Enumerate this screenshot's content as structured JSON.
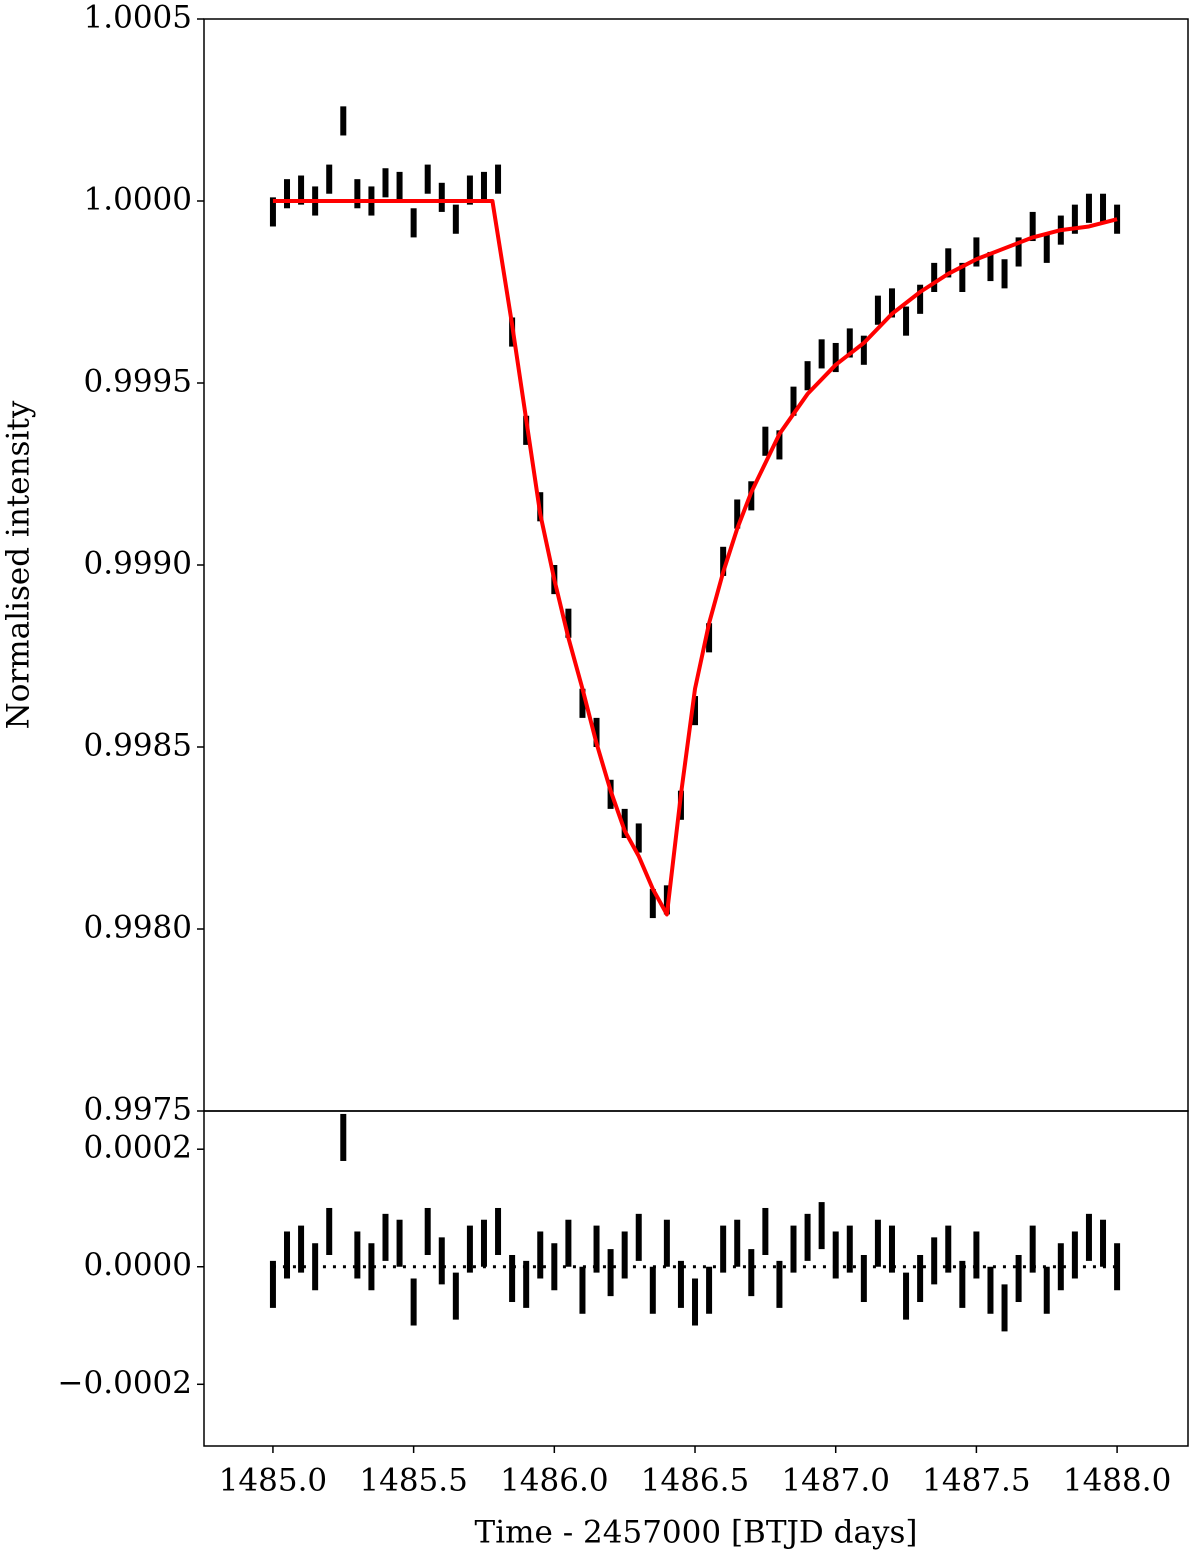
{
  "chart_data": [
    {
      "type": "errorbar",
      "ylabel": "Normalised intensity",
      "xlim": [
        1484.755,
        1488.252
      ],
      "ylim": [
        0.9975,
        1.0005
      ],
      "yticks": [
        0.9975,
        {
          "value": 0.998,
          "label": "0.9980"
        },
        0.9985,
        {
          "value": 0.999,
          "label": "0.9990"
        },
        0.9995,
        {
          "value": 1,
          "label": "1.0000"
        },
        1.0005
      ],
      "color": "#000000",
      "x": [
        1485.0,
        1485.05,
        1485.1,
        1485.15,
        1485.2,
        1485.25,
        1485.3,
        1485.35,
        1485.4,
        1485.45,
        1485.5,
        1485.55,
        1485.6,
        1485.65,
        1485.7,
        1485.75,
        1485.8,
        1485.85,
        1485.9,
        1485.95,
        1486.0,
        1486.05,
        1486.1,
        1486.15,
        1486.2,
        1486.25,
        1486.3,
        1486.35,
        1486.4,
        1486.45,
        1486.5,
        1486.55,
        1486.6,
        1486.65,
        1486.7,
        1486.75,
        1486.8,
        1486.85,
        1486.9,
        1486.95,
        1487.0,
        1487.05,
        1487.1,
        1487.15,
        1487.2,
        1487.25,
        1487.3,
        1487.35,
        1487.4,
        1487.45,
        1487.5,
        1487.55,
        1487.6,
        1487.65,
        1487.7,
        1487.75,
        1487.8,
        1487.85,
        1487.9,
        1487.95,
        1488.0
      ],
      "values": [
        0.99997,
        1.00002,
        1.00003,
        1.0,
        1.00006,
        1.00022,
        1.00002,
        1.0,
        1.00005,
        1.00004,
        0.99994,
        1.00006,
        1.00001,
        0.99995,
        1.00003,
        1.00004,
        1.00006,
        0.99964,
        0.99937,
        0.99916,
        0.99896,
        0.99884,
        0.99862,
        0.99854,
        0.99837,
        0.99829,
        0.99825,
        0.99807,
        0.99808,
        0.99834,
        0.9986,
        0.9988,
        0.99901,
        0.99914,
        0.99919,
        0.99934,
        0.99933,
        0.99945,
        0.99952,
        0.99958,
        0.99957,
        0.99961,
        0.99959,
        0.9997,
        0.99972,
        0.99967,
        0.99973,
        0.99979,
        0.99983,
        0.99979,
        0.99986,
        0.99982,
        0.9998,
        0.99986,
        0.99993,
        0.99987,
        0.99992,
        0.99995,
        0.99998,
        0.99998,
        0.99995
      ],
      "errors": [
        4e-05,
        4e-05,
        4e-05,
        4e-05,
        4e-05,
        4e-05,
        4e-05,
        4e-05,
        4e-05,
        4e-05,
        4e-05,
        4e-05,
        4e-05,
        4e-05,
        4e-05,
        4e-05,
        4e-05,
        4e-05,
        4e-05,
        4e-05,
        4e-05,
        4e-05,
        4e-05,
        4e-05,
        4e-05,
        4e-05,
        4e-05,
        4e-05,
        4e-05,
        4e-05,
        4e-05,
        4e-05,
        4e-05,
        4e-05,
        4e-05,
        4e-05,
        4e-05,
        4e-05,
        4e-05,
        4e-05,
        4e-05,
        4e-05,
        4e-05,
        4e-05,
        4e-05,
        4e-05,
        4e-05,
        4e-05,
        4e-05,
        4e-05,
        4e-05,
        4e-05,
        4e-05,
        4e-05,
        4e-05,
        4e-05,
        4e-05,
        4e-05,
        4e-05,
        4e-05,
        4e-05
      ],
      "model": {
        "color": "#ff0000",
        "x": [
          1485.0,
          1485.78,
          1485.85,
          1485.9,
          1485.95,
          1486.0,
          1486.05,
          1486.1,
          1486.15,
          1486.2,
          1486.25,
          1486.3,
          1486.35,
          1486.4,
          1486.45,
          1486.5,
          1486.55,
          1486.6,
          1486.65,
          1486.7,
          1486.75,
          1486.8,
          1486.9,
          1487.0,
          1487.1,
          1487.2,
          1487.3,
          1487.4,
          1487.5,
          1487.6,
          1487.7,
          1487.8,
          1487.9,
          1488.0
        ],
        "values": [
          1.0,
          1.0,
          0.99966,
          0.9994,
          0.99914,
          0.99896,
          0.9988,
          0.99866,
          0.99851,
          0.99838,
          0.99827,
          0.9982,
          0.99811,
          0.99804,
          0.99837,
          0.99866,
          0.99884,
          0.99898,
          0.9991,
          0.9992,
          0.99928,
          0.99936,
          0.99947,
          0.99955,
          0.99961,
          0.99969,
          0.99975,
          0.9998,
          0.99984,
          0.99987,
          0.9999,
          0.99992,
          0.99993,
          0.99995
        ]
      }
    },
    {
      "type": "errorbar",
      "xlabel": "Time - 2457000 [BTJD days]",
      "xlim": [
        1484.755,
        1488.252
      ],
      "ylim": [
        -0.000305,
        0.000265
      ],
      "xticks": [
        {
          "value": 1485,
          "label": "1485.0"
        },
        1485.5,
        {
          "value": 1486,
          "label": "1486.0"
        },
        1486.5,
        {
          "value": 1487,
          "label": "1487.0"
        },
        1487.5,
        {
          "value": 1488,
          "label": "1488.0"
        }
      ],
      "yticks": [
        {
          "value": -0.0002,
          "label": "−0.0002"
        },
        {
          "value": 0,
          "label": "0.0000"
        },
        0.0002
      ],
      "color": "#000000",
      "hline": 0,
      "x": [
        1485.0,
        1485.05,
        1485.1,
        1485.15,
        1485.2,
        1485.25,
        1485.3,
        1485.35,
        1485.4,
        1485.45,
        1485.5,
        1485.55,
        1485.6,
        1485.65,
        1485.7,
        1485.75,
        1485.8,
        1485.85,
        1485.9,
        1485.95,
        1486.0,
        1486.05,
        1486.1,
        1486.15,
        1486.2,
        1486.25,
        1486.3,
        1486.35,
        1486.4,
        1486.45,
        1486.5,
        1486.55,
        1486.6,
        1486.65,
        1486.7,
        1486.75,
        1486.8,
        1486.85,
        1486.9,
        1486.95,
        1487.0,
        1487.05,
        1487.1,
        1487.15,
        1487.2,
        1487.25,
        1487.3,
        1487.35,
        1487.4,
        1487.45,
        1487.5,
        1487.55,
        1487.6,
        1487.65,
        1487.7,
        1487.75,
        1487.8,
        1487.85,
        1487.9,
        1487.95,
        1488.0
      ],
      "values": [
        -3e-05,
        2e-05,
        3e-05,
        0.0,
        6e-05,
        0.00022,
        2e-05,
        0.0,
        5e-05,
        4e-05,
        -6e-05,
        6e-05,
        1e-05,
        -5e-05,
        3e-05,
        4e-05,
        6e-05,
        -2e-05,
        -3e-05,
        2e-05,
        0.0,
        4e-05,
        -4e-05,
        3e-05,
        -1e-05,
        2e-05,
        5e-05,
        -4e-05,
        4e-05,
        -3e-05,
        -6e-05,
        -4e-05,
        3e-05,
        4e-05,
        -1e-05,
        6e-05,
        -3e-05,
        3e-05,
        5e-05,
        7e-05,
        2e-05,
        3e-05,
        -2e-05,
        4e-05,
        3e-05,
        -5e-05,
        -2e-05,
        1e-05,
        3e-05,
        -3e-05,
        2e-05,
        -4e-05,
        -7e-05,
        -2e-05,
        3e-05,
        -4e-05,
        0.0,
        2e-05,
        5e-05,
        4e-05,
        0.0
      ],
      "errors": [
        4e-05,
        4e-05,
        4e-05,
        4e-05,
        4e-05,
        4e-05,
        4e-05,
        4e-05,
        4e-05,
        4e-05,
        4e-05,
        4e-05,
        4e-05,
        4e-05,
        4e-05,
        4e-05,
        4e-05,
        4e-05,
        4e-05,
        4e-05,
        4e-05,
        4e-05,
        4e-05,
        4e-05,
        4e-05,
        4e-05,
        4e-05,
        4e-05,
        4e-05,
        4e-05,
        4e-05,
        4e-05,
        4e-05,
        4e-05,
        4e-05,
        4e-05,
        4e-05,
        4e-05,
        4e-05,
        4e-05,
        4e-05,
        4e-05,
        4e-05,
        4e-05,
        4e-05,
        4e-05,
        4e-05,
        4e-05,
        4e-05,
        4e-05,
        4e-05,
        4e-05,
        4e-05,
        4e-05,
        4e-05,
        4e-05,
        4e-05,
        4e-05,
        4e-05,
        4e-05,
        4e-05
      ]
    }
  ]
}
